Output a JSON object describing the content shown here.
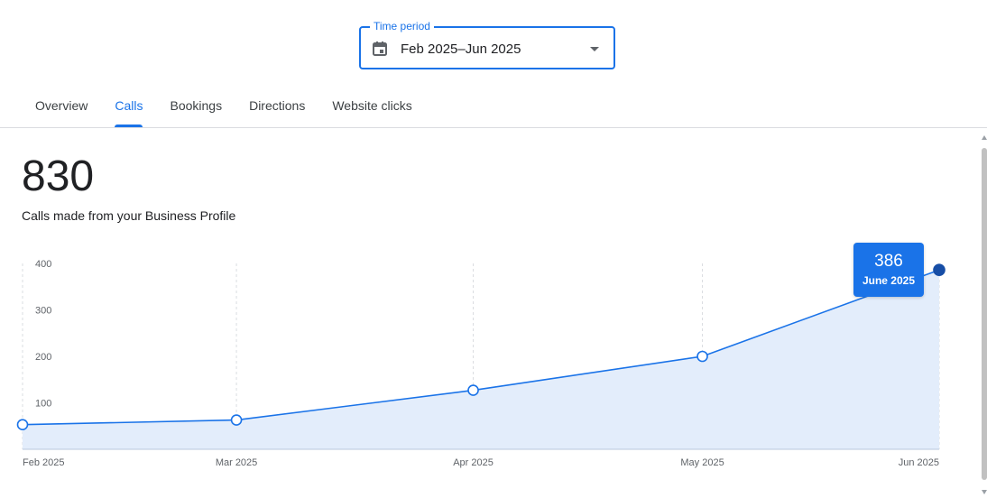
{
  "time_period": {
    "label": "Time period",
    "value": "Feb 2025–Jun 2025",
    "icon": "calendar-icon"
  },
  "tabs": [
    {
      "label": "Overview",
      "active": false
    },
    {
      "label": "Calls",
      "active": true
    },
    {
      "label": "Bookings",
      "active": false
    },
    {
      "label": "Directions",
      "active": false
    },
    {
      "label": "Website clicks",
      "active": false
    }
  ],
  "metric": {
    "value": "830",
    "caption": "Calls made from your Business Profile"
  },
  "tooltip": {
    "value": "386",
    "date": "June 2025"
  },
  "colors": {
    "accent": "#1a73e8",
    "area_fill": "#e3edfb",
    "line": "#1a73e8"
  },
  "chart_data": {
    "type": "area",
    "x": [
      "Feb 2025",
      "Mar 2025",
      "Apr 2025",
      "May 2025",
      "Jun 2025"
    ],
    "x_days": [
      0,
      28,
      59,
      89,
      120
    ],
    "values": [
      53,
      63,
      127,
      200,
      386
    ],
    "title": "",
    "xlabel": "",
    "ylabel": "",
    "yticks": [
      100,
      200,
      300,
      400
    ],
    "ylim": [
      0,
      400
    ],
    "grid": "vertical-dashed",
    "highlighted_index": 4
  }
}
